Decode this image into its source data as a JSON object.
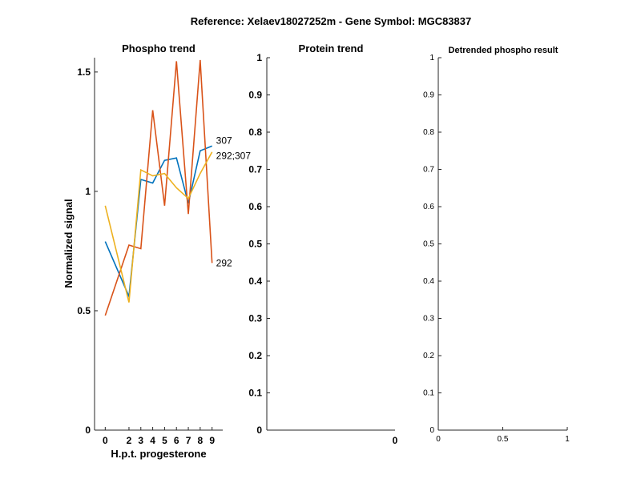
{
  "figure": {
    "suptitle": "Reference:  Xelaev18027252m - Gene Symbol:  MGC83837"
  },
  "colors": {
    "series_blue": "#0072BD",
    "series_orange": "#D95319",
    "series_yellow": "#EDB120",
    "axis": "#262626"
  },
  "chart_data": [
    {
      "type": "line",
      "title": "Phospho trend",
      "xlabel": "H.p.t. progesterone",
      "ylabel": "Normalized signal",
      "x": [
        0,
        2,
        3,
        4,
        5,
        6,
        7,
        8,
        9
      ],
      "xticks": [
        "0",
        "2",
        "3",
        "4",
        "5",
        "6",
        "7",
        "8",
        "9"
      ],
      "yticks": [
        "0",
        "0.5",
        "1",
        "1.5"
      ],
      "ylim": [
        0,
        1.56
      ],
      "grid": false,
      "series": [
        {
          "name": "307",
          "color": "#0072BD",
          "values": [
            0.79,
            0.56,
            1.05,
            1.035,
            1.13,
            1.14,
            0.95,
            1.17,
            1.19
          ]
        },
        {
          "name": "292",
          "color": "#D95319",
          "values": [
            0.48,
            0.775,
            0.76,
            1.34,
            0.94,
            1.545,
            0.905,
            1.55,
            0.7
          ]
        },
        {
          "name": "292;307",
          "color": "#EDB120",
          "values": [
            0.94,
            0.535,
            1.09,
            1.065,
            1.075,
            1.015,
            0.97,
            1.075,
            1.165
          ]
        }
      ]
    },
    {
      "type": "line",
      "title": "Protein trend",
      "xticks": [
        "0"
      ],
      "yticks": [
        "0",
        "0.1",
        "0.2",
        "0.3",
        "0.4",
        "0.5",
        "0.6",
        "0.7",
        "0.8",
        "0.9",
        "1"
      ],
      "ylim": [
        0,
        1
      ],
      "series": []
    },
    {
      "type": "line",
      "title": "Detrended phospho result",
      "xticks": [
        "0",
        "0.5",
        "1"
      ],
      "yticks": [
        "0",
        "0.1",
        "0.2",
        "0.3",
        "0.4",
        "0.5",
        "0.6",
        "0.7",
        "0.8",
        "0.9",
        "1"
      ],
      "xlim": [
        0,
        1
      ],
      "ylim": [
        0,
        1
      ],
      "series": []
    }
  ]
}
